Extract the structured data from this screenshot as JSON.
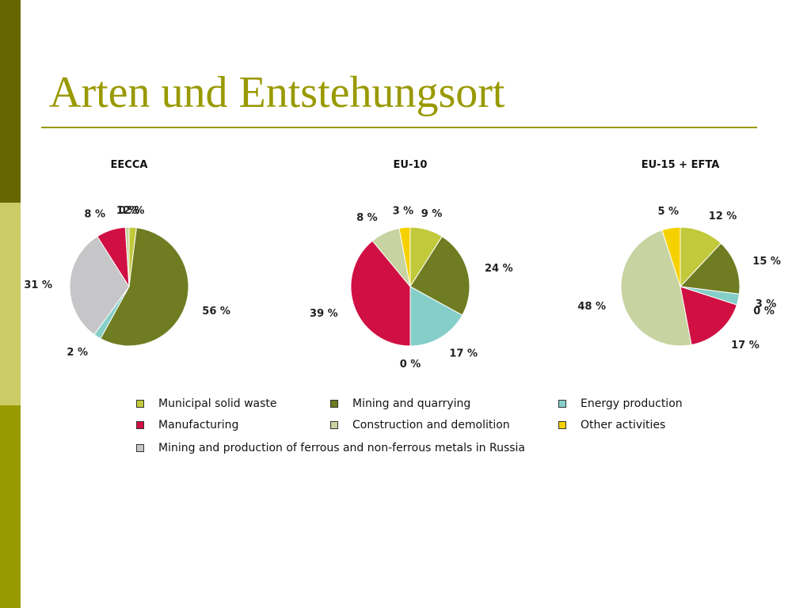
{
  "slide": {
    "title": "Arten und Entstehungsort"
  },
  "categories": [
    {
      "name": "Municipal solid waste",
      "color": "#c2c93a"
    },
    {
      "name": "Mining and quarrying",
      "color": "#6f7c22"
    },
    {
      "name": "Energy production",
      "color": "#86cfc9"
    },
    {
      "name": "Manufacturing",
      "color": "#d01043"
    },
    {
      "name": "Construction and demolition",
      "color": "#c7d3a0"
    },
    {
      "name": "Other activities",
      "color": "#f6d100"
    },
    {
      "name": "Mining and production of ferrous and non-ferrous metals in Russia",
      "color": "#c6c6c8"
    }
  ],
  "chart_data": [
    {
      "type": "pie",
      "title": "EECCA",
      "slices": [
        {
          "name": "Municipal solid waste",
          "value": 2,
          "label": "2 %"
        },
        {
          "name": "Mining and quarrying",
          "value": 56,
          "label": "56 %"
        },
        {
          "name": "Energy production",
          "value": 2,
          "label": "2 %"
        },
        {
          "name": "Mining and production of ferrous and non-ferrous metals in Russia",
          "value": 31,
          "label": "31 %"
        },
        {
          "name": "Manufacturing",
          "value": 8,
          "label": "8 %"
        },
        {
          "name": "Construction and demolition",
          "value": 1,
          "label": "1 %"
        },
        {
          "name": "Other activities",
          "value": 0,
          "label": "0 %"
        }
      ]
    },
    {
      "type": "pie",
      "title": "EU-10",
      "slices": [
        {
          "name": "Municipal solid waste",
          "value": 9,
          "label": "9 %"
        },
        {
          "name": "Mining and quarrying",
          "value": 24,
          "label": "24 %"
        },
        {
          "name": "Energy production",
          "value": 17,
          "label": "17 %"
        },
        {
          "name": "Mining and production of ferrous and non-ferrous metals in Russia",
          "value": 0,
          "label": "0 %"
        },
        {
          "name": "Manufacturing",
          "value": 39,
          "label": "39 %"
        },
        {
          "name": "Construction and demolition",
          "value": 8,
          "label": "8 %"
        },
        {
          "name": "Other activities",
          "value": 3,
          "label": "3 %"
        }
      ]
    },
    {
      "type": "pie",
      "title": "EU-15 + EFTA",
      "slices": [
        {
          "name": "Municipal solid waste",
          "value": 12,
          "label": "12 %"
        },
        {
          "name": "Mining and quarrying",
          "value": 15,
          "label": "15 %"
        },
        {
          "name": "Energy production",
          "value": 3,
          "label": "3 %"
        },
        {
          "name": "Mining and production of ferrous and non-ferrous metals in Russia",
          "value": 0,
          "label": "0 %"
        },
        {
          "name": "Manufacturing",
          "value": 17,
          "label": "17 %"
        },
        {
          "name": "Construction and demolition",
          "value": 48,
          "label": "48 %"
        },
        {
          "name": "Other activities",
          "value": 5,
          "label": "5 %"
        }
      ]
    }
  ]
}
